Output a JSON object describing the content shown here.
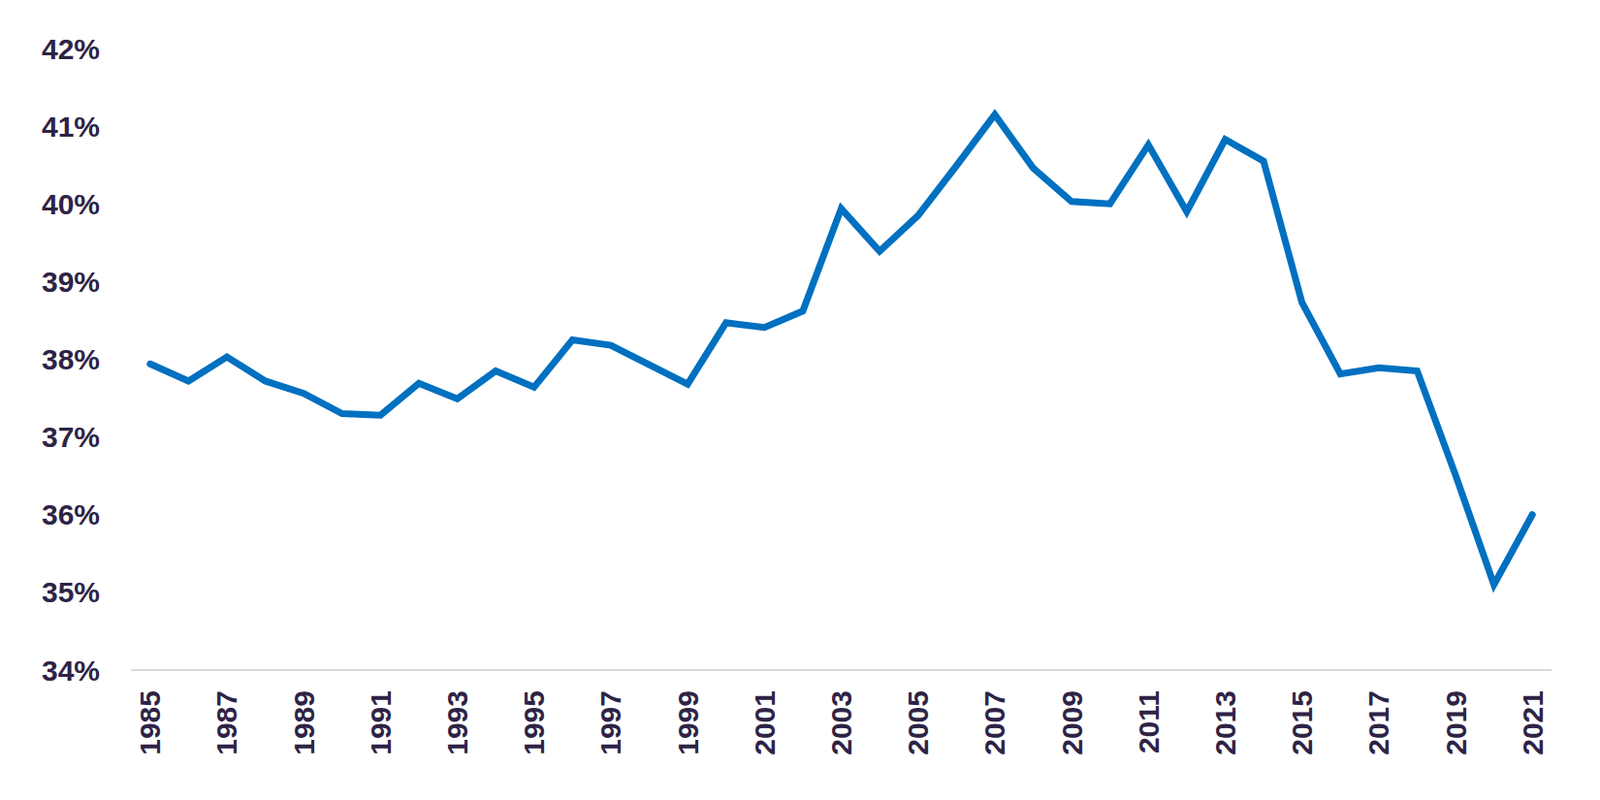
{
  "chart_data": {
    "type": "line",
    "x": [
      1985,
      1986,
      1987,
      1988,
      1989,
      1990,
      1991,
      1992,
      1993,
      1994,
      1995,
      1996,
      1997,
      1998,
      1999,
      2000,
      2001,
      2002,
      2003,
      2004,
      2005,
      2006,
      2007,
      2008,
      2009,
      2010,
      2011,
      2012,
      2013,
      2014,
      2015,
      2016,
      2017,
      2018,
      2019,
      2020,
      2021
    ],
    "values": [
      37.94,
      37.72,
      38.03,
      37.72,
      37.56,
      37.3,
      37.28,
      37.69,
      37.49,
      37.85,
      37.64,
      38.25,
      38.18,
      37.93,
      37.68,
      38.47,
      38.41,
      38.62,
      39.94,
      39.39,
      39.85,
      40.49,
      41.15,
      40.46,
      40.03,
      40.0,
      40.76,
      39.9,
      40.83,
      40.55,
      38.73,
      37.81,
      37.89,
      37.85,
      36.51,
      35.1,
      36.0
    ],
    "color": "#0070c0",
    "xlim": [
      1984.5,
      2021.5
    ],
    "xticks": [
      1985,
      1987,
      1989,
      1991,
      1993,
      1995,
      1997,
      1999,
      2001,
      2003,
      2005,
      2007,
      2009,
      2011,
      2013,
      2015,
      2017,
      2019,
      2021
    ],
    "ylim": [
      34,
      42
    ],
    "yticks": [
      {
        "value": 34,
        "label": "34%"
      },
      {
        "value": 35,
        "label": "35%"
      },
      {
        "value": 36,
        "label": "36%"
      },
      {
        "value": 37,
        "label": "37%"
      },
      {
        "value": 38,
        "label": "38%"
      },
      {
        "value": 39,
        "label": "39%"
      },
      {
        "value": 40,
        "label": "40%"
      },
      {
        "value": 41,
        "label": "41%"
      },
      {
        "value": 42,
        "label": "42%"
      }
    ],
    "grid": false
  }
}
